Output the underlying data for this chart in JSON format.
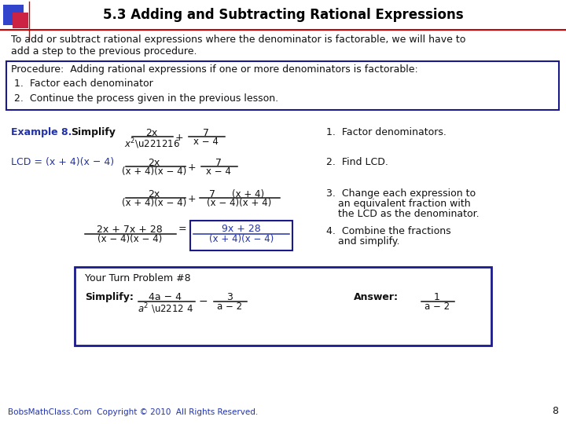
{
  "title": "5.3 Adding and Subtracting Rational Expressions",
  "bg_color": "#ffffff",
  "dark_blue": "#1a1a8c",
  "blue_text": "#2233aa",
  "red_line": "#cc0000",
  "footer_text": "BobsMathClass.Com  Copyright © 2010  All Rights Reserved.",
  "page_number": "8"
}
